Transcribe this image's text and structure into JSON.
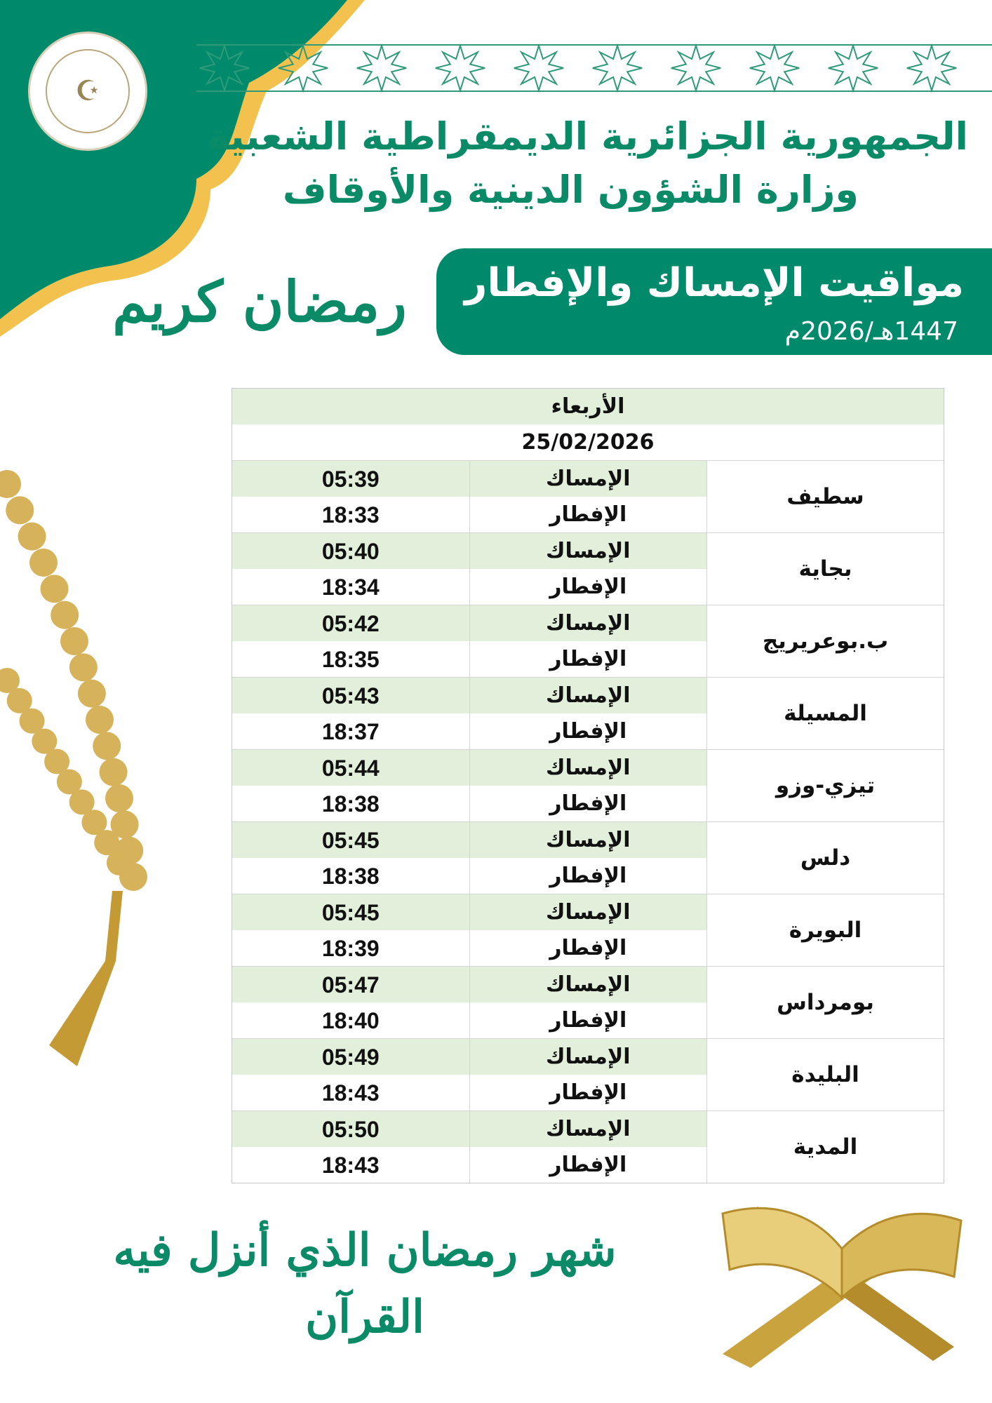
{
  "colors": {
    "primary_green": "#008a6c",
    "gold": "#f2c14e",
    "row_green": "#e2efda",
    "bead_gold": "#d6b25a"
  },
  "header": {
    "logo_icon": "ministry-seal-icon",
    "line1": "الجمهورية الجزائرية الديمقراطية الشعبية",
    "line2": "وزارة الشؤون الدينية والأوقاف"
  },
  "banner": {
    "title": "مواقيت الإمساك والإفطار",
    "year": "1447هـ/2026م"
  },
  "calligraphy": {
    "ramadan_kareem": "رمضان كريم",
    "verse": "شهر رمضان الذي أنزل فيه القرآن"
  },
  "table": {
    "day": "الأربعاء",
    "date": "25/02/2026",
    "imsak_label": "الإمساك",
    "iftar_label": "الإفطار",
    "cities": [
      {
        "name": "سطيف",
        "imsak": "05:39",
        "iftar": "18:33"
      },
      {
        "name": "بجاية",
        "imsak": "05:40",
        "iftar": "18:34"
      },
      {
        "name": "ب.بوعريريج",
        "imsak": "05:42",
        "iftar": "18:35"
      },
      {
        "name": "المسيلة",
        "imsak": "05:43",
        "iftar": "18:37"
      },
      {
        "name": "تيزي-وزو",
        "imsak": "05:44",
        "iftar": "18:38"
      },
      {
        "name": "دلس",
        "imsak": "05:45",
        "iftar": "18:38"
      },
      {
        "name": "البويرة",
        "imsak": "05:45",
        "iftar": "18:39"
      },
      {
        "name": "بومرداس",
        "imsak": "05:47",
        "iftar": "18:40"
      },
      {
        "name": "البليدة",
        "imsak": "05:49",
        "iftar": "18:43"
      },
      {
        "name": "المدية",
        "imsak": "05:50",
        "iftar": "18:43"
      }
    ]
  }
}
